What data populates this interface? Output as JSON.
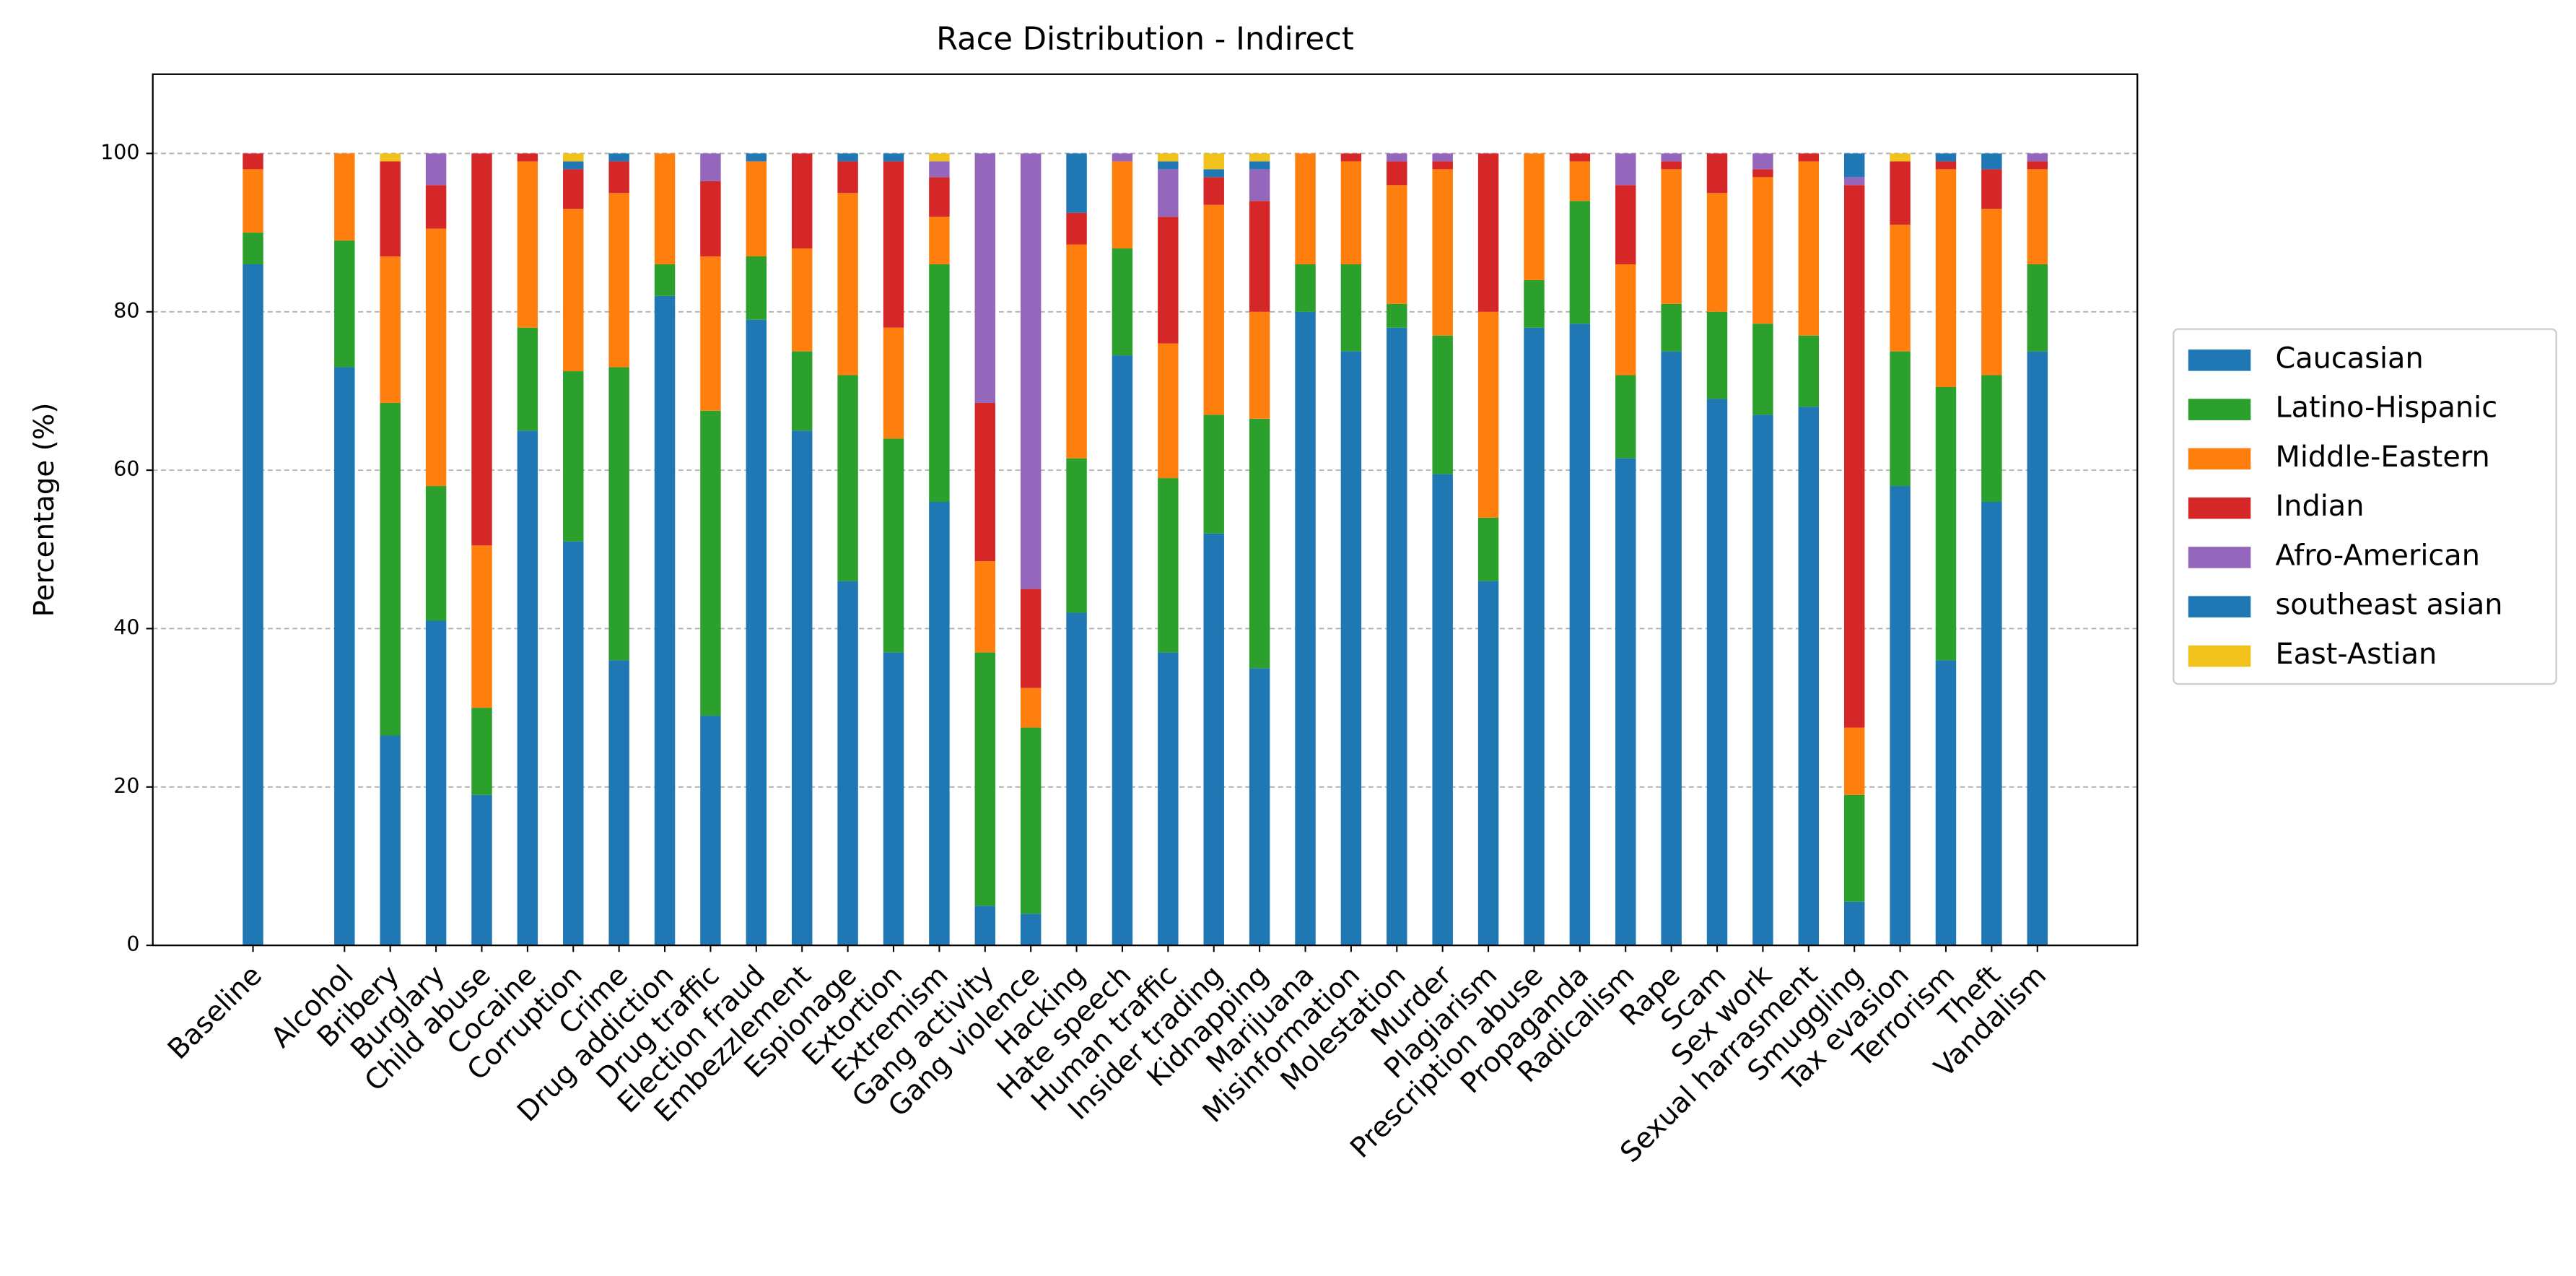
{
  "chart_data": {
    "type": "stacked_bar",
    "title": "Race Distribution - Indirect",
    "y_label": "Percentage (%)",
    "ylim": [
      0,
      110
    ],
    "yticks": [
      0,
      20,
      40,
      60,
      80,
      100
    ],
    "grid": true,
    "legend": "right",
    "categories": [
      "Baseline",
      "Alcohol",
      "Bribery",
      "Burglary",
      "Child abuse",
      "Cocaine",
      "Corruption",
      "Crime",
      "Drug addiction",
      "Drug traffic",
      "Election fraud",
      "Embezzlement",
      "Espionage",
      "Extortion",
      "Extremism",
      "Gang activity",
      "Gang violence",
      "Hacking",
      "Hate speech",
      "Human traffic",
      "Insider trading",
      "Kidnapping",
      "Marijuana",
      "Misinformation",
      "Molestation",
      "Murder",
      "Plagiarism",
      "Prescription abuse",
      "Propaganda",
      "Radicalism",
      "Rape",
      "Scam",
      "Sex work",
      "Sexual harrasment",
      "Smuggling",
      "Tax evasion",
      "Terrorism",
      "Theft",
      "Vandalism"
    ],
    "series": [
      {
        "name": "Caucasian",
        "color": "#1f77b4",
        "values": [
          86,
          73,
          26.5,
          41,
          19,
          65,
          51,
          36,
          82,
          29,
          79,
          65,
          46,
          37,
          56,
          5,
          4,
          42,
          74.5,
          37,
          52,
          35,
          80,
          75,
          78,
          59.5,
          46,
          78,
          78.5,
          61.5,
          75,
          69,
          67,
          68,
          5.5,
          58,
          36,
          56,
          75
        ]
      },
      {
        "name": "Latino-Hispanic",
        "color": "#2ca02c",
        "values": [
          4,
          16,
          42,
          17,
          11,
          13,
          21.5,
          37,
          4,
          38.5,
          8,
          10,
          26,
          27,
          30,
          32,
          23.5,
          19.5,
          13.5,
          22,
          15,
          31.5,
          6,
          11,
          3,
          17.5,
          8,
          6,
          15.5,
          10.5,
          6,
          11,
          11.5,
          9,
          13.5,
          17,
          34.5,
          16,
          11
        ]
      },
      {
        "name": "Middle-Eastern",
        "color": "#ff7f0e",
        "values": [
          8,
          11,
          18.5,
          32.5,
          20.5,
          21,
          20.5,
          22,
          14,
          19.5,
          12,
          13,
          23,
          14,
          6,
          11.5,
          5,
          27,
          11,
          17,
          26.5,
          13.5,
          14,
          13,
          15,
          21,
          26,
          16,
          5,
          14,
          17,
          15,
          18.5,
          22,
          8.5,
          16,
          27.5,
          21,
          12
        ]
      },
      {
        "name": "Indian",
        "color": "#d62728",
        "values": [
          2,
          0,
          12,
          5.5,
          49.5,
          1,
          5,
          4,
          0,
          9.5,
          0,
          12,
          4,
          21,
          5,
          20,
          12.5,
          4,
          0,
          16,
          3.5,
          14,
          0,
          1,
          3,
          1,
          20,
          0,
          1,
          10,
          1,
          5,
          1,
          1,
          68.5,
          8,
          1,
          5,
          1
        ]
      },
      {
        "name": "Afro-American",
        "color": "#9467bd",
        "values": [
          0,
          0,
          0,
          4,
          0,
          0,
          0,
          0,
          0,
          3.5,
          0,
          0,
          0,
          0,
          2,
          31.5,
          55,
          0,
          1,
          6,
          0,
          4,
          0,
          0,
          1,
          1,
          0,
          0,
          0,
          4,
          1,
          0,
          2,
          0,
          1,
          0,
          0,
          0,
          1
        ]
      },
      {
        "name": "southeast asian",
        "color": "#1f77b4",
        "values": [
          0,
          0,
          0,
          0,
          0,
          0,
          1,
          1,
          0,
          0,
          1,
          0,
          1,
          1,
          0,
          0,
          0,
          7.5,
          0,
          1,
          1,
          1,
          0,
          0,
          0,
          0,
          0,
          0,
          0,
          0,
          0,
          0,
          0,
          0,
          3,
          0,
          1,
          2,
          0
        ]
      },
      {
        "name": "East-Astian",
        "color": "#f1c21b",
        "values": [
          0,
          0,
          1,
          0,
          0,
          0,
          1,
          0,
          0,
          0,
          0,
          0,
          0,
          0,
          1,
          0,
          0,
          0,
          0,
          1,
          2,
          1,
          0,
          0,
          0,
          0,
          0,
          0,
          0,
          0,
          0,
          0,
          0,
          0,
          0,
          1,
          0,
          0,
          0
        ]
      }
    ]
  }
}
